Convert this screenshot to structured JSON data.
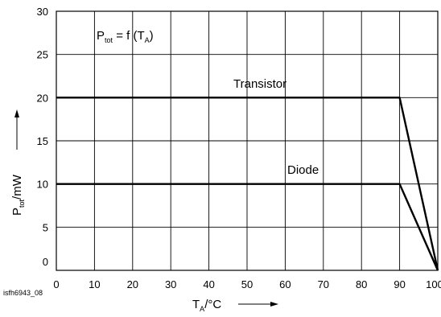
{
  "chart_data": {
    "type": "line",
    "title_parts": {
      "p": "P",
      "p_sub": "tot",
      "mid": " = f (T",
      "t_sub": "A",
      "end": ")"
    },
    "ylabel_parts": {
      "p": "P",
      "p_sub": "tot",
      "unit": "/mW"
    },
    "xlabel_parts": {
      "t": "T",
      "t_sub": "A",
      "unit": "/°C"
    },
    "xlim": [
      0,
      100
    ],
    "ylim": [
      0,
      30
    ],
    "x_ticks": [
      0,
      10,
      20,
      30,
      40,
      50,
      60,
      70,
      80,
      90,
      100
    ],
    "y_ticks": [
      0,
      5,
      10,
      15,
      20,
      25,
      30
    ],
    "grid": true,
    "series": [
      {
        "name": "Transistor",
        "x": [
          0,
          90,
          100
        ],
        "y": [
          20,
          20,
          0
        ]
      },
      {
        "name": "Diode",
        "x": [
          0,
          90,
          100
        ],
        "y": [
          10,
          10,
          0
        ]
      }
    ],
    "figure_code": "isfh6943_08"
  }
}
